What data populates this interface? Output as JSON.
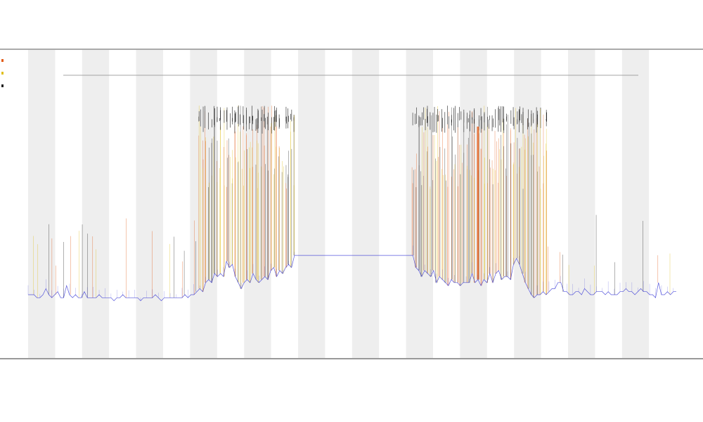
{
  "chart_data": {
    "type": "line",
    "title": "",
    "subtitle_lines": [],
    "xlabel": "",
    "ylabel": "",
    "ylim": [
      0,
      100
    ],
    "x_count": 220,
    "day_bands": 12,
    "gap": [
      90,
      130
    ],
    "baseline": {
      "name": "",
      "color": "#3b3bd6",
      "values": [
        20,
        20,
        20,
        19,
        19,
        20,
        22,
        20,
        19,
        20,
        21,
        19,
        19,
        23,
        20,
        19,
        20,
        19,
        19,
        21,
        19,
        19,
        19,
        19,
        20,
        19,
        19,
        19,
        19,
        18,
        19,
        19,
        20,
        19,
        19,
        19,
        19,
        19,
        18,
        19,
        19,
        19,
        19,
        20,
        19,
        18,
        19,
        19,
        19,
        19,
        19,
        19,
        19,
        20,
        19,
        20,
        20,
        21,
        22,
        21,
        24,
        25,
        24,
        27,
        26,
        27,
        26,
        31,
        29,
        30,
        26,
        24,
        22,
        24,
        25,
        24,
        27,
        25,
        24,
        25,
        26,
        25,
        28,
        29,
        26,
        28,
        27,
        29,
        30,
        29,
        33,
        31,
        31,
        31,
        30,
        29,
        29,
        28,
        28,
        27,
        27,
        26,
        26,
        25,
        25,
        24,
        24,
        23,
        23,
        22,
        22,
        21,
        21,
        20,
        20,
        21,
        22,
        22,
        23,
        24,
        25,
        26,
        27,
        27,
        28,
        28,
        28,
        29,
        30,
        31,
        33,
        29,
        28,
        26,
        28,
        27,
        26,
        28,
        24,
        26,
        25,
        24,
        23,
        25,
        24,
        24,
        23,
        24,
        24,
        24,
        27,
        24,
        25,
        23,
        25,
        24,
        27,
        24,
        27,
        28,
        25,
        26,
        26,
        25,
        30,
        32,
        30,
        27,
        24,
        22,
        20,
        19,
        20,
        20,
        21,
        20,
        21,
        22,
        22,
        24,
        24,
        21,
        21,
        20,
        20,
        21,
        21,
        20,
        22,
        21,
        20,
        20,
        21,
        21,
        21,
        20,
        21,
        20,
        20,
        20,
        21,
        21,
        22,
        21,
        21,
        20,
        21,
        22,
        21,
        21,
        20,
        20,
        19,
        24,
        20,
        20,
        21,
        20,
        21,
        21
      ]
    },
    "spike_series": [
      {
        "name": "",
        "color": "#e35d1a"
      },
      {
        "name": "",
        "color": "#e0c020"
      },
      {
        "name": "",
        "color": "#222222"
      }
    ],
    "legend_position": "top-left",
    "grid": false
  }
}
